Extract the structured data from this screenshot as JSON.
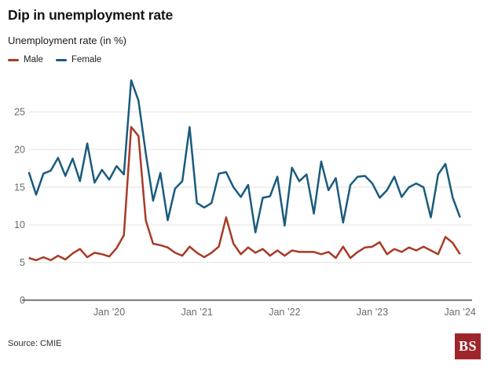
{
  "header": {
    "title": "Dip in unemployment rate",
    "subtitle": "Unemployment rate (in %)"
  },
  "legend": {
    "items": [
      {
        "label": "Male",
        "color": "#a93a27"
      },
      {
        "label": "Female",
        "color": "#1a5b7d"
      }
    ]
  },
  "footer": {
    "source": "Source: CMIE",
    "logo_text": "BS",
    "logo_color": "#9e262b"
  },
  "chart_data": {
    "type": "line",
    "title": "Dip in unemployment rate",
    "subtitle": "Unemployment rate (in %)",
    "x_axis": {
      "unit": "month",
      "start": "Feb 2019",
      "end": "Jan 2024",
      "points": 60,
      "ticks": [
        {
          "label": "Jan ’20",
          "index": 11
        },
        {
          "label": "Jan ’21",
          "index": 23
        },
        {
          "label": "Jan ’22",
          "index": 35
        },
        {
          "label": "Jan ’23",
          "index": 47
        },
        {
          "label": "Jan ’24",
          "index": 59
        }
      ]
    },
    "y_axis": {
      "ticks": [
        0,
        5,
        10,
        15,
        20,
        25
      ],
      "ylim": [
        0,
        30
      ],
      "grid": "horizontal"
    },
    "legend_position": "top-left",
    "series": [
      {
        "name": "Female",
        "color": "#1a5b7d",
        "values": [
          17.0,
          14.0,
          16.8,
          17.2,
          18.9,
          16.5,
          18.8,
          15.8,
          20.8,
          15.6,
          17.3,
          16.0,
          17.8,
          16.7,
          29.2,
          26.5,
          19.5,
          13.2,
          16.9,
          10.6,
          14.8,
          15.8,
          23.0,
          12.9,
          12.3,
          12.9,
          16.8,
          17.0,
          15.0,
          13.7,
          15.3,
          9.0,
          13.6,
          13.8,
          16.4,
          9.9,
          17.6,
          15.8,
          16.7,
          11.5,
          18.4,
          14.6,
          16.2,
          10.3,
          15.3,
          16.4,
          16.5,
          15.5,
          13.6,
          14.6,
          16.4,
          13.7,
          15.0,
          15.5,
          15.0,
          11.0,
          16.7,
          18.1,
          13.6,
          11.0
        ]
      },
      {
        "name": "Male",
        "color": "#a93a27",
        "values": [
          5.6,
          5.3,
          5.7,
          5.3,
          5.9,
          5.4,
          6.2,
          6.8,
          5.7,
          6.3,
          6.1,
          5.8,
          6.9,
          8.6,
          23.0,
          21.8,
          10.6,
          7.5,
          7.3,
          7.0,
          6.3,
          5.9,
          7.1,
          6.3,
          5.7,
          6.3,
          7.1,
          11.0,
          7.5,
          6.1,
          7.0,
          6.3,
          6.8,
          5.9,
          6.6,
          5.9,
          6.6,
          6.4,
          6.4,
          6.4,
          6.1,
          6.4,
          5.6,
          7.1,
          5.6,
          6.4,
          7.0,
          7.1,
          7.7,
          6.1,
          6.8,
          6.4,
          7.0,
          6.6,
          7.1,
          6.6,
          6.1,
          8.4,
          7.6,
          6.1
        ]
      }
    ]
  }
}
